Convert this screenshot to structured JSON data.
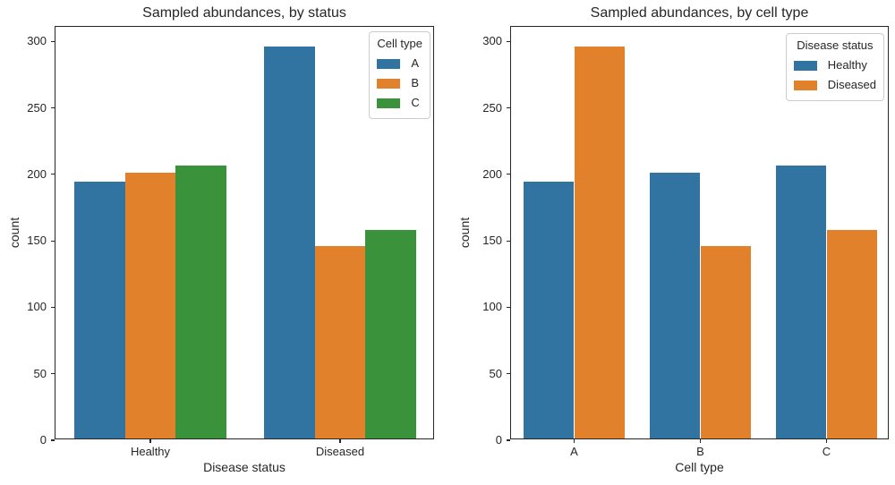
{
  "style": {
    "text_color": "#262626",
    "spine_color": "#262626",
    "legend_border_color": "#cccccc",
    "background_color": "#ffffff",
    "palette": {
      "blue": "#3274a1",
      "orange": "#e1812c",
      "green": "#3a923a"
    }
  },
  "chart_data": [
    {
      "type": "bar",
      "title": "Sampled abundances, by status",
      "xlabel": "Disease status",
      "ylabel": "count",
      "categories": [
        "Healthy",
        "Diseased"
      ],
      "series": [
        {
          "name": "A",
          "color": "#3274a1",
          "values": [
            193,
            295
          ]
        },
        {
          "name": "B",
          "color": "#e1812c",
          "values": [
            200,
            145
          ]
        },
        {
          "name": "C",
          "color": "#3a923a",
          "values": [
            205,
            157
          ]
        }
      ],
      "legend_title": "Cell type",
      "legend_position": "upper right",
      "ylim": [
        0,
        311
      ],
      "yticks": [
        0,
        50,
        100,
        150,
        200,
        250,
        300
      ],
      "grid": false
    },
    {
      "type": "bar",
      "title": "Sampled abundances, by cell type",
      "xlabel": "Cell type",
      "ylabel": "count",
      "categories": [
        "A",
        "B",
        "C"
      ],
      "series": [
        {
          "name": "Healthy",
          "color": "#3274a1",
          "values": [
            193,
            200,
            205
          ]
        },
        {
          "name": "Diseased",
          "color": "#e1812c",
          "values": [
            295,
            145,
            157
          ]
        }
      ],
      "legend_title": "Disease status",
      "legend_position": "upper right",
      "ylim": [
        0,
        311
      ],
      "yticks": [
        0,
        50,
        100,
        150,
        200,
        250,
        300
      ],
      "grid": false
    }
  ]
}
